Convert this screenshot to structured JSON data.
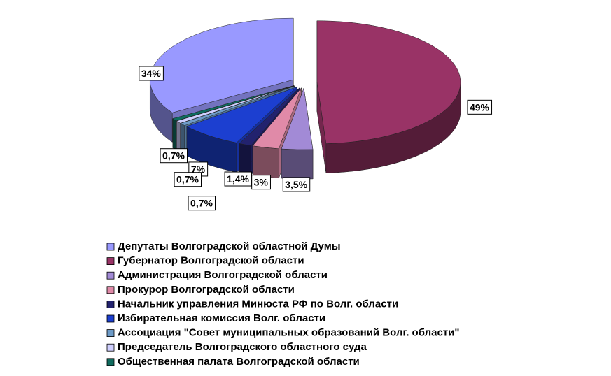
{
  "chart_data": {
    "type": "pie",
    "series": [
      {
        "name": "Депутаты Волгоградской областной Думы",
        "color": "#9999ff"
      },
      {
        "name": "Губернатор Волгоградской области",
        "color": "#993366"
      },
      {
        "name": "Администрация Волгоградской области",
        "color": "#a28ad6"
      },
      {
        "name": "Прокурор Волгоградской области",
        "color": "#e08aa8"
      },
      {
        "name": "Начальник  управления Минюста РФ по Волг. области",
        "color": "#22226e"
      },
      {
        "name": "Избирательная комиссия Волг. области",
        "color": "#1c3fd0"
      },
      {
        "name": "Ассоциация \"Совет муниципальных образований Волг. области\"",
        "color": "#6d9bc8"
      },
      {
        "name": "Председатель Волгоградского областного суда",
        "color": "#d0d0ff"
      },
      {
        "name": "Общественная палата Волгоградской области",
        "color": "#0f6b5e"
      }
    ],
    "values": [
      34,
      49,
      3.5,
      3,
      1.4,
      7,
      0.7,
      0.7,
      0.7
    ],
    "value_labels": [
      "34%",
      "49%",
      "3,5%",
      "3%",
      "1,4%",
      "7%",
      "0,7%",
      "0,7%",
      "0,7%"
    ],
    "legend": "bottom"
  }
}
